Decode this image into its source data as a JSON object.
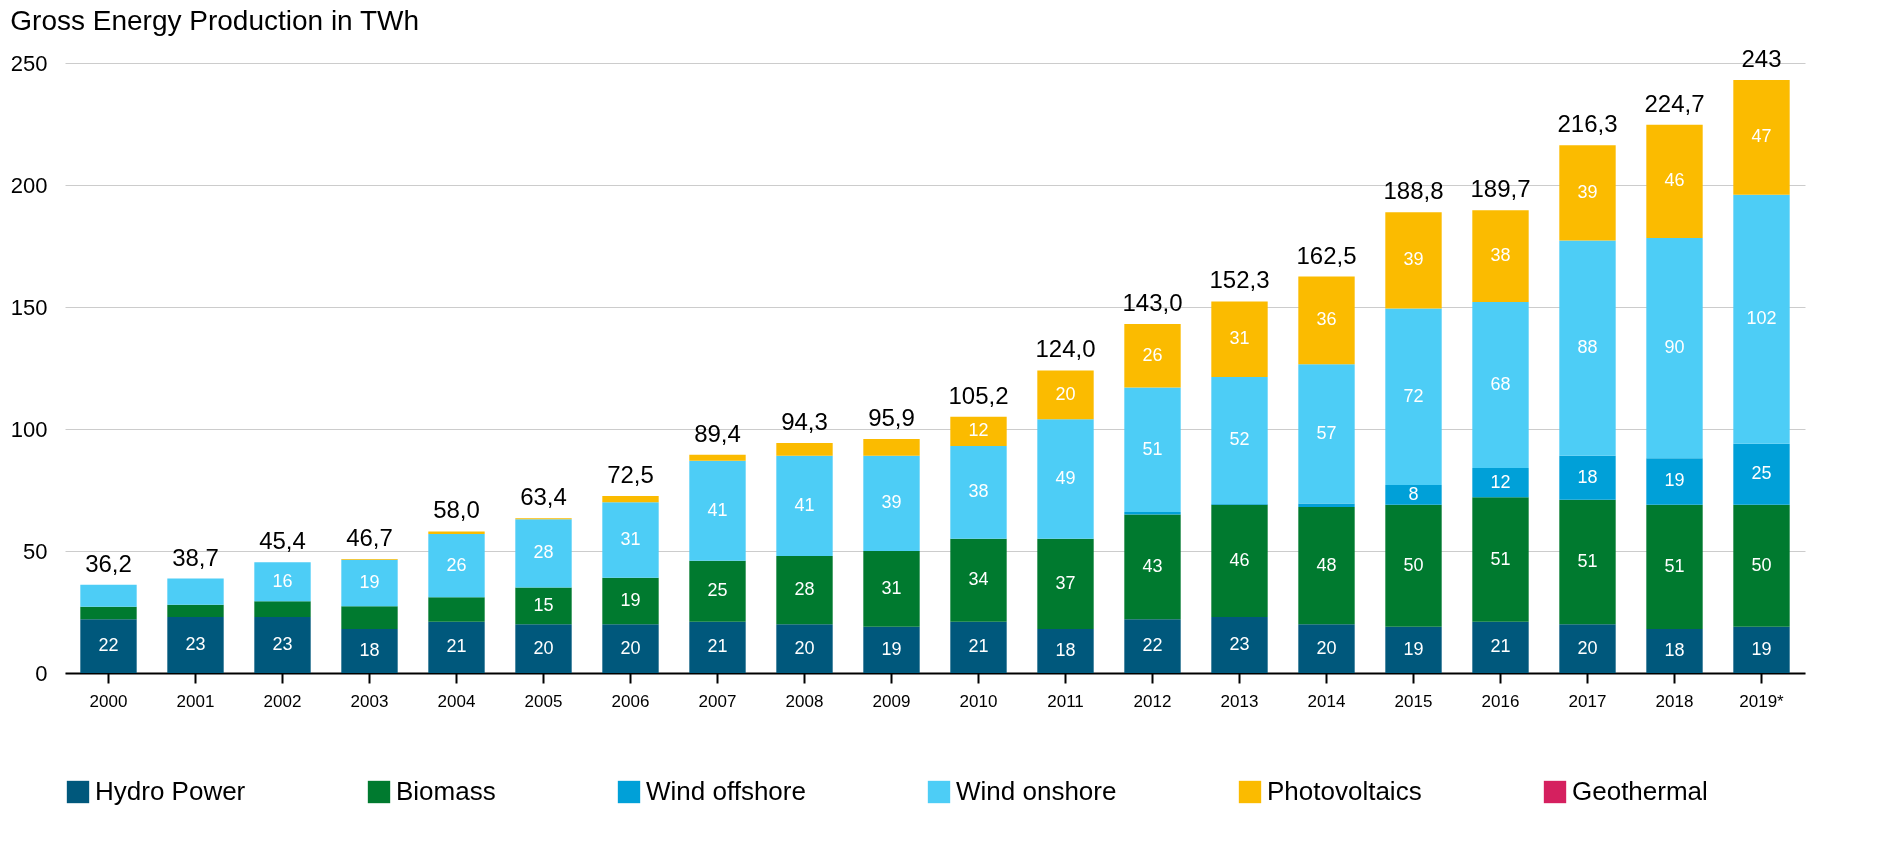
{
  "chart_data": {
    "type": "bar",
    "title": "Gross Energy Production in TWh",
    "stacked": true,
    "categories": [
      "2000",
      "2001",
      "2002",
      "2003",
      "2004",
      "2005",
      "2006",
      "2007",
      "2008",
      "2009",
      "2010",
      "2011",
      "2012",
      "2013",
      "2014",
      "2015",
      "2016",
      "2017",
      "2018",
      "2019*"
    ],
    "series": [
      {
        "name": "Hydro Power",
        "color": "#00587c",
        "values": [
          22,
          23,
          23,
          18,
          21,
          20,
          20,
          21,
          20,
          19,
          21,
          18,
          22,
          23,
          20,
          19,
          21,
          20,
          18,
          19
        ],
        "value_labels": [
          "22",
          "23",
          "23",
          "18",
          "21",
          "20",
          "20",
          "21",
          "20",
          "19",
          "21",
          "18",
          "22",
          "23",
          "20",
          "19",
          "21",
          "20",
          "18",
          "19"
        ]
      },
      {
        "name": "Biomass",
        "color": "#007a2f",
        "values": [
          5.2,
          5,
          6.4,
          9.4,
          10,
          15,
          19,
          25,
          28,
          31,
          34,
          37,
          43,
          46,
          48,
          50,
          51,
          51,
          51,
          50
        ],
        "value_labels": [
          null,
          null,
          null,
          null,
          null,
          "15",
          "19",
          "25",
          "28",
          "31",
          "34",
          "37",
          "43",
          "46",
          "48",
          "50",
          "51",
          "51",
          "51",
          "50"
        ]
      },
      {
        "name": "Wind offshore",
        "color": "#00a0d8",
        "values": [
          null,
          null,
          null,
          null,
          null,
          null,
          null,
          null,
          null,
          null,
          null,
          null,
          1,
          0.3,
          1.5,
          8,
          12,
          18,
          19,
          25
        ],
        "value_labels": [
          null,
          null,
          null,
          null,
          null,
          null,
          null,
          null,
          null,
          null,
          null,
          null,
          null,
          null,
          null,
          "8",
          "12",
          "18",
          "19",
          "25"
        ]
      },
      {
        "name": "Wind onshore",
        "color": "#4dcdf6",
        "values": [
          9,
          10.7,
          16,
          19,
          26,
          28,
          31,
          41,
          41,
          39,
          38,
          49,
          51,
          52,
          57,
          72.4,
          68,
          88.3,
          90.3,
          102
        ],
        "value_labels": [
          null,
          null,
          "16",
          "19",
          "26",
          "28",
          "31",
          "41",
          "41",
          "39",
          "38",
          "49",
          "51",
          "52",
          "57",
          "72",
          "68",
          "88",
          "90",
          "102"
        ]
      },
      {
        "name": "Photovoltaics",
        "color": "#fbbb00",
        "values": [
          null,
          null,
          null,
          0.3,
          1,
          0.4,
          2.5,
          2.4,
          5.3,
          6.9,
          12,
          20,
          26,
          31,
          36,
          39.4,
          37.7,
          39,
          46.4,
          47
        ],
        "value_labels": [
          null,
          null,
          null,
          null,
          null,
          null,
          null,
          null,
          null,
          null,
          "12",
          "20",
          "26",
          "31",
          "36",
          "39",
          "38",
          "39",
          "46",
          "47"
        ]
      },
      {
        "name": "Geothermal",
        "color": "#d5205f",
        "values": [
          null,
          null,
          null,
          null,
          null,
          null,
          null,
          null,
          null,
          null,
          null,
          null,
          null,
          null,
          null,
          null,
          null,
          null,
          null,
          null
        ]
      }
    ],
    "totals": [
      "36,2",
      "38,7",
      "45,4",
      "46,7",
      "58,0",
      "63,4",
      "72,5",
      "89,4",
      "94,3",
      "95,9",
      "105,2",
      "124,0",
      "143,0",
      "152,3",
      "162,5",
      "188,8",
      "189,7",
      "216,3",
      "224,7",
      "243"
    ],
    "ylim": [
      0,
      250
    ],
    "yticks": [
      0,
      50,
      100,
      150,
      200,
      250
    ],
    "grid": "y",
    "legend": "bottom"
  }
}
